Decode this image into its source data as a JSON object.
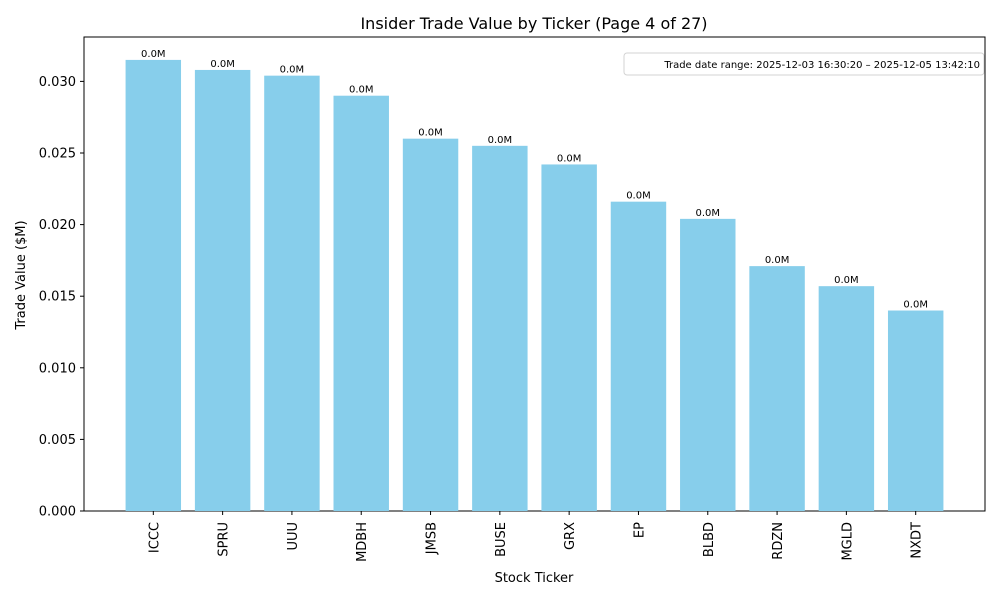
{
  "chart_data": {
    "type": "bar",
    "title": "Insider Trade Value by Ticker (Page 4 of 27)",
    "xlabel": "Stock Ticker",
    "ylabel": "Trade Value ($M)",
    "categories": [
      "ICCC",
      "SPRU",
      "UUU",
      "MDBH",
      "JMSB",
      "BUSE",
      "GRX",
      "EP",
      "BLBD",
      "RDZN",
      "MGLD",
      "NXDT"
    ],
    "values": [
      0.0315,
      0.0308,
      0.0304,
      0.029,
      0.026,
      0.0255,
      0.0242,
      0.0216,
      0.0204,
      0.0171,
      0.0157,
      0.014
    ],
    "bar_labels": [
      "0.0M",
      "0.0M",
      "0.0M",
      "0.0M",
      "0.0M",
      "0.0M",
      "0.0M",
      "0.0M",
      "0.0M",
      "0.0M",
      "0.0M",
      "0.0M"
    ],
    "yticks": [
      0.0,
      0.005,
      0.01,
      0.015,
      0.02,
      0.025,
      0.03
    ],
    "ytick_labels": [
      "0.000",
      "0.005",
      "0.010",
      "0.015",
      "0.020",
      "0.025",
      "0.030"
    ],
    "ylim": [
      0,
      0.0331
    ],
    "annotation": "Trade date range: 2025-12-03 16:30:20 – 2025-12-05 13:42:10",
    "annotation_placement": "top-right",
    "bar_color": "#87ceeb",
    "grid": false,
    "legend": false
  }
}
